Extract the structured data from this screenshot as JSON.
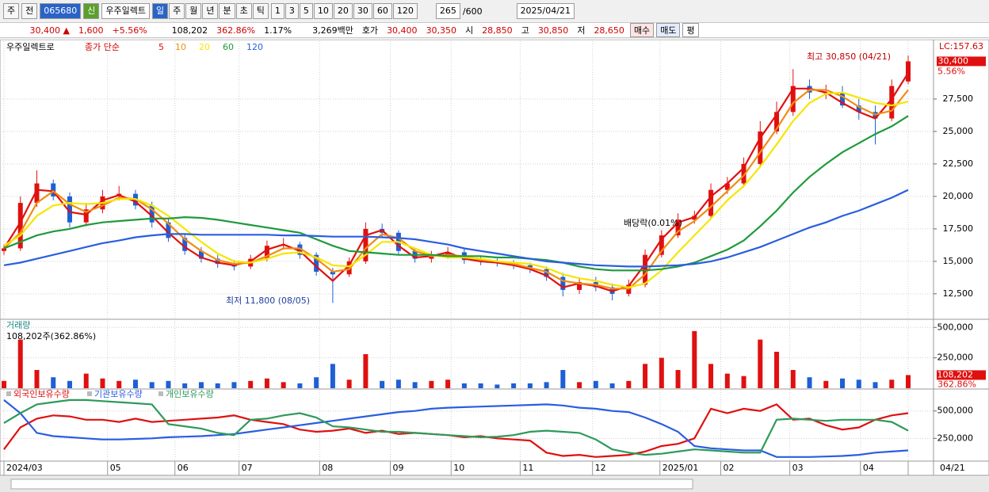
{
  "toolbar": {
    "market": "주",
    "scope": "전",
    "code": "065680",
    "badge": "신",
    "name": "우주일렉트",
    "periods": [
      "일",
      "주",
      "월",
      "년",
      "분",
      "초",
      "틱"
    ],
    "intervals": [
      "1",
      "3",
      "5",
      "10",
      "20",
      "30",
      "60",
      "120"
    ],
    "count": "265",
    "max": "/600",
    "date": "2025/04/21"
  },
  "quote": {
    "price": "30,400 ▲",
    "change": "1,600",
    "rate": "+5.56%",
    "volume": "108,202",
    "volume_ratio": "362.86%",
    "turnover_rate": "1.17%",
    "amount": "3,269백만",
    "ask_label": "호가",
    "ask": "30,400",
    "bid": "30,350",
    "open_label": "시",
    "open": "28,850",
    "high_label": "고",
    "high": "30,850",
    "low_label": "저",
    "low": "28,650",
    "buy": "매수",
    "sell": "매도",
    "avg": "평"
  },
  "chart_data": [
    {
      "type": "candlestick",
      "title": "우주일렉트로",
      "legend_prefix": "종가 단순",
      "lc_label": "LC:157.63",
      "last_value_label": "30,400",
      "last_change_label": "5.56%",
      "annotations": {
        "high": "최고 30,850 (04/21)",
        "low": "최저 11,800 (08/05)",
        "dividend": "배당락(0.01%)"
      },
      "up_color": "#e01010",
      "down_color": "#1f5fd6",
      "grid": true,
      "xlim": [
        0,
        55
      ],
      "xticks": [
        {
          "value": 0,
          "label": "2024/03"
        },
        {
          "value": 6.3,
          "label": "05"
        },
        {
          "value": 10.4,
          "label": "06"
        },
        {
          "value": 14.3,
          "label": "07"
        },
        {
          "value": 19.2,
          "label": "08"
        },
        {
          "value": 23.5,
          "label": "09"
        },
        {
          "value": 27.2,
          "label": "10"
        },
        {
          "value": 31.4,
          "label": "11"
        },
        {
          "value": 35.8,
          "label": "12"
        },
        {
          "value": 39.9,
          "label": "2025/01"
        },
        {
          "value": 43.6,
          "label": "02"
        },
        {
          "value": 47.8,
          "label": "03"
        },
        {
          "value": 52.1,
          "label": "04"
        },
        {
          "value": 55,
          "label": "04/21"
        }
      ],
      "ylim": [
        10600,
        31950
      ],
      "yticks": [
        {
          "value": 12500,
          "label": "12,500"
        },
        {
          "value": 15000,
          "label": "15,000"
        },
        {
          "value": 17500,
          "label": "17,500"
        },
        {
          "value": 20000,
          "label": "20,000"
        },
        {
          "value": 22500,
          "label": "22,500"
        },
        {
          "value": 25000,
          "label": "25,000"
        },
        {
          "value": 27500,
          "label": "27,500"
        }
      ],
      "open": [
        15800,
        16000,
        19500,
        21000,
        20000,
        18000,
        19000,
        20000,
        20200,
        19300,
        18000,
        16800,
        15800,
        15200,
        14800,
        14600,
        15200,
        16200,
        16300,
        15500,
        14200,
        14000,
        15000,
        17500,
        17200,
        15800,
        15200,
        15500,
        15700,
        15100,
        15000,
        14900,
        14700,
        14400,
        13800,
        12800,
        13400,
        13000,
        12500,
        13200,
        15500,
        17000,
        18200,
        18500,
        20500,
        21000,
        22500,
        25000,
        26500,
        28500,
        28000,
        28000,
        27000,
        26500,
        26000,
        28850
      ],
      "high": [
        16300,
        20000,
        22000,
        21300,
        20300,
        19500,
        20500,
        20800,
        20500,
        19600,
        18300,
        17100,
        16100,
        15500,
        15100,
        15500,
        16600,
        16800,
        16500,
        15700,
        14500,
        15300,
        18000,
        17900,
        17400,
        16000,
        15800,
        16100,
        16000,
        15400,
        15200,
        15100,
        14900,
        14600,
        14100,
        13700,
        13800,
        13300,
        13600,
        15900,
        17400,
        18700,
        18900,
        21000,
        21500,
        23000,
        25800,
        27300,
        29800,
        29000,
        28600,
        28500,
        27500,
        27000,
        29000,
        30850
      ],
      "low": [
        15500,
        15800,
        19200,
        19700,
        17600,
        17700,
        18700,
        19700,
        19000,
        17600,
        16500,
        15500,
        14900,
        14500,
        14300,
        14400,
        15000,
        15900,
        15200,
        13900,
        11800,
        13800,
        14800,
        16900,
        15500,
        14900,
        14900,
        15200,
        14800,
        14700,
        14600,
        14400,
        14100,
        13500,
        12300,
        12500,
        12700,
        12000,
        12300,
        13000,
        15300,
        16800,
        17900,
        18300,
        20200,
        20700,
        22300,
        24800,
        26200,
        27500,
        27500,
        26800,
        25900,
        24000,
        25800,
        28650
      ],
      "close": [
        16000,
        19500,
        21000,
        20000,
        18000,
        19000,
        20000,
        20200,
        19300,
        18000,
        16800,
        15800,
        15200,
        14800,
        14600,
        15200,
        16200,
        16300,
        15500,
        14200,
        14000,
        15000,
        17500,
        17200,
        15800,
        15200,
        15500,
        15700,
        15100,
        15000,
        14900,
        14700,
        14400,
        13800,
        12800,
        13400,
        13000,
        12500,
        13200,
        15500,
        17000,
        18200,
        18500,
        20500,
        21000,
        22500,
        25000,
        26500,
        28500,
        28000,
        28000,
        27000,
        26500,
        26000,
        28500,
        30400
      ],
      "series": [
        {
          "name": "5",
          "color": "#e01010",
          "values": [
            16000,
            18000,
            20500,
            20400,
            18800,
            18600,
            19700,
            20100,
            19600,
            18500,
            17200,
            16100,
            15300,
            14900,
            14700,
            15000,
            15900,
            16300,
            15800,
            14600,
            13500,
            14700,
            17000,
            17400,
            16200,
            15300,
            15400,
            15700,
            15200,
            15000,
            14900,
            14700,
            14400,
            13900,
            13000,
            13300,
            13100,
            12700,
            13100,
            14800,
            16700,
            18000,
            18400,
            20000,
            21000,
            22200,
            24500,
            26300,
            28300,
            28300,
            28000,
            27200,
            26500,
            26000,
            27500,
            29500
          ]
        },
        {
          "name": "10",
          "color": "#f08c14",
          "values": [
            16000,
            17200,
            19500,
            20400,
            19400,
            18800,
            19300,
            19900,
            19800,
            19000,
            17900,
            16700,
            15800,
            15100,
            14800,
            14900,
            15400,
            16000,
            16000,
            15200,
            14200,
            14400,
            16000,
            17100,
            16800,
            15800,
            15400,
            15500,
            15400,
            15100,
            15000,
            14800,
            14500,
            14200,
            13500,
            13300,
            13200,
            12900,
            12900,
            14000,
            15800,
            17300,
            18100,
            19200,
            20400,
            21600,
            23400,
            25200,
            27200,
            28200,
            28200,
            27700,
            26900,
            26300,
            26600,
            28200
          ]
        },
        {
          "name": "20",
          "color": "#f5e600",
          "values": [
            16200,
            17000,
            18500,
            19300,
            19500,
            19400,
            19500,
            19800,
            19800,
            19300,
            18500,
            17500,
            16500,
            15600,
            15000,
            14900,
            15200,
            15600,
            15700,
            15300,
            14700,
            14600,
            15500,
            16500,
            16500,
            16000,
            15500,
            15300,
            15300,
            15200,
            15000,
            14900,
            14800,
            14500,
            14000,
            13700,
            13500,
            13200,
            13000,
            13300,
            14300,
            15700,
            17000,
            18300,
            19700,
            20800,
            22300,
            24000,
            25800,
            27200,
            27900,
            28000,
            27600,
            27200,
            27000,
            27300
          ]
        },
        {
          "name": "60",
          "color": "#1e9a3c",
          "values": [
            16000,
            16500,
            17000,
            17300,
            17500,
            17800,
            18000,
            18100,
            18200,
            18300,
            18300,
            18400,
            18350,
            18200,
            18000,
            17800,
            17600,
            17400,
            17200,
            16700,
            16200,
            15800,
            15700,
            15600,
            15500,
            15500,
            15500,
            15400,
            15400,
            15400,
            15300,
            15300,
            15200,
            15100,
            14900,
            14600,
            14400,
            14300,
            14300,
            14300,
            14400,
            14600,
            14900,
            15400,
            15900,
            16600,
            17700,
            18900,
            20300,
            21500,
            22500,
            23400,
            24100,
            24800,
            25400,
            26200
          ]
        },
        {
          "name": "120",
          "color": "#2a5ee0",
          "values": [
            14700,
            14900,
            15200,
            15500,
            15800,
            16100,
            16400,
            16600,
            16850,
            17000,
            17100,
            17100,
            17050,
            17050,
            17050,
            17050,
            17050,
            17000,
            17000,
            16950,
            16900,
            16900,
            16900,
            16850,
            16800,
            16700,
            16500,
            16300,
            16000,
            15800,
            15600,
            15400,
            15200,
            15000,
            14900,
            14800,
            14700,
            14650,
            14600,
            14600,
            14650,
            14700,
            14800,
            15000,
            15300,
            15700,
            16100,
            16600,
            17100,
            17600,
            18000,
            18500,
            18900,
            19400,
            19900,
            20500
          ]
        }
      ]
    },
    {
      "type": "bar",
      "title": "거래량",
      "note": "108,202주(362.86%)",
      "last_value_label": "108,202",
      "last_change_label": "362.86%",
      "ylim": [
        0,
        554000
      ],
      "yticks": [
        {
          "value": 250000,
          "label": "250,000"
        },
        {
          "value": 500000,
          "label": "500,000"
        }
      ],
      "values": [
        60000,
        400000,
        150000,
        90000,
        60000,
        120000,
        80000,
        60000,
        70000,
        50000,
        60000,
        40000,
        50000,
        40000,
        50000,
        60000,
        80000,
        50000,
        40000,
        90000,
        200000,
        70000,
        280000,
        60000,
        70000,
        50000,
        60000,
        70000,
        40000,
        40000,
        30000,
        40000,
        40000,
        50000,
        150000,
        50000,
        60000,
        40000,
        60000,
        200000,
        250000,
        150000,
        470000,
        200000,
        120000,
        100000,
        400000,
        300000,
        150000,
        90000,
        60000,
        80000,
        70000,
        50000,
        70000,
        108202
      ]
    },
    {
      "type": "line",
      "ylim": [
        50000,
        693000
      ],
      "yticks": [
        {
          "value": 250000,
          "label": "250,000"
        },
        {
          "value": 500000,
          "label": "500,000"
        }
      ],
      "series": [
        {
          "name": "외국인보유수량",
          "color": "#e01010",
          "values": [
            150000,
            350000,
            430000,
            460000,
            450000,
            420000,
            420000,
            400000,
            430000,
            400000,
            410000,
            420000,
            430000,
            440000,
            460000,
            420000,
            400000,
            380000,
            330000,
            310000,
            320000,
            340000,
            300000,
            320000,
            290000,
            300000,
            290000,
            280000,
            260000,
            270000,
            250000,
            240000,
            230000,
            120000,
            90000,
            100000,
            80000,
            90000,
            100000,
            130000,
            180000,
            200000,
            250000,
            520000,
            480000,
            520000,
            500000,
            560000,
            420000,
            430000,
            370000,
            330000,
            350000,
            420000,
            460000,
            480000
          ]
        },
        {
          "name": "기관보유수량",
          "color": "#2a5ee0",
          "values": [
            600000,
            480000,
            300000,
            270000,
            260000,
            250000,
            240000,
            240000,
            245000,
            250000,
            260000,
            265000,
            270000,
            280000,
            290000,
            310000,
            330000,
            350000,
            370000,
            390000,
            410000,
            430000,
            450000,
            470000,
            490000,
            500000,
            520000,
            530000,
            535000,
            540000,
            545000,
            550000,
            555000,
            560000,
            550000,
            530000,
            520000,
            500000,
            490000,
            440000,
            380000,
            310000,
            180000,
            160000,
            150000,
            140000,
            140000,
            80000,
            80000,
            80000,
            85000,
            90000,
            100000,
            120000,
            130000,
            140000
          ]
        },
        {
          "name": "개인보유수량",
          "color": "#2e9a5a",
          "values": [
            390000,
            480000,
            560000,
            580000,
            600000,
            600000,
            590000,
            580000,
            570000,
            560000,
            380000,
            360000,
            340000,
            300000,
            280000,
            420000,
            430000,
            460000,
            480000,
            440000,
            360000,
            350000,
            330000,
            310000,
            310000,
            300000,
            290000,
            280000,
            270000,
            260000,
            265000,
            280000,
            310000,
            320000,
            310000,
            300000,
            240000,
            150000,
            120000,
            100000,
            110000,
            130000,
            150000,
            140000,
            130000,
            120000,
            120000,
            420000,
            430000,
            420000,
            410000,
            420000,
            420000,
            420000,
            400000,
            320000
          ]
        }
      ]
    }
  ]
}
